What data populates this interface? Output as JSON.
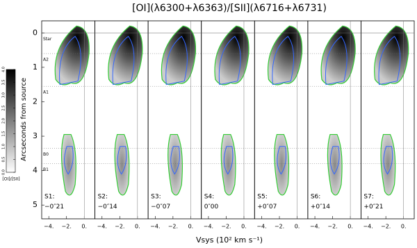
{
  "chart_data": {
    "type": "panels",
    "title": "[OI](λ6300+λ6363)/[SII](λ6716+λ6731)",
    "xlabel": "Vsys (10² km s⁻¹)",
    "ylabel": "Arcseconds from source",
    "panels": [
      {
        "name": "S1:",
        "offset": "−0″21"
      },
      {
        "name": "S2:",
        "offset": "−0″14"
      },
      {
        "name": "S3:",
        "offset": "−0″07"
      },
      {
        "name": "S4:",
        "offset": "0″00"
      },
      {
        "name": "S5:",
        "offset": "+0″07"
      },
      {
        "name": "S6:",
        "offset": "+0″14"
      },
      {
        "name": "S7:",
        "offset": "+0″21"
      }
    ],
    "xlim": [
      -4.8,
      1.2
    ],
    "xticks": [
      {
        "value": -4,
        "label": "−4."
      },
      {
        "value": -2,
        "label": "−2."
      },
      {
        "value": 0,
        "label": "0."
      }
    ],
    "ylim": [
      5.4,
      -0.35
    ],
    "yticks": [
      0,
      1,
      2,
      3,
      4,
      5
    ],
    "markers": [
      {
        "label": "Star",
        "value": 0
      },
      {
        "label": "A2",
        "value": 0.6
      },
      {
        "label": "A1",
        "value": 1.55
      },
      {
        "label": "B0",
        "value": 3.35
      },
      {
        "label": "B1",
        "value": 3.8
      }
    ],
    "colorbar": {
      "label": "[OI]/[SII]",
      "lim": [
        0,
        4
      ],
      "ticks": [
        {
          "value": 0,
          "label": "0.0"
        },
        {
          "value": 0.5,
          "label": "0.5"
        },
        {
          "value": 1,
          "label": "1.0"
        },
        {
          "value": 1.5,
          "label": "1.5"
        },
        {
          "value": 2,
          "label": "2.0"
        },
        {
          "value": 2.5,
          "label": "2.5"
        },
        {
          "value": 3,
          "label": "3.0"
        },
        {
          "value": 3.5,
          "label": "3.5"
        },
        {
          "value": 4,
          "label": "4.0"
        }
      ]
    }
  }
}
